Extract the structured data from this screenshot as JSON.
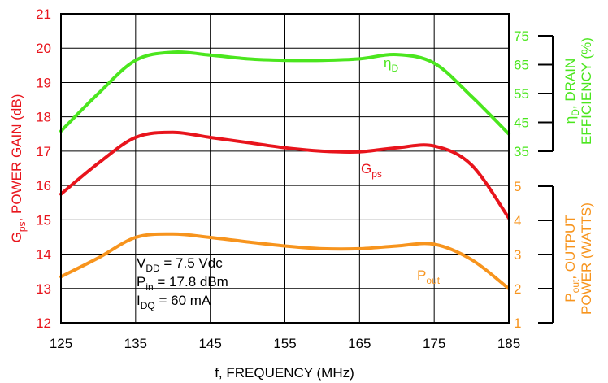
{
  "colors": {
    "gps": "#e8141c",
    "eta": "#4be61e",
    "pout": "#f7941d",
    "axis": "#000000"
  },
  "chart_data": {
    "type": "line",
    "x": [
      125,
      130,
      135,
      140,
      145,
      150,
      155,
      160,
      165,
      170,
      175,
      180,
      185
    ],
    "xlabel": "f, FREQUENCY (MHz)",
    "xlim": [
      125,
      185
    ],
    "xticks": [
      "125",
      "135",
      "145",
      "155",
      "165",
      "175",
      "185"
    ],
    "grid": true,
    "axes": {
      "left": {
        "label_prefix": "G",
        "label_sub": "ps",
        "label_rest": ", POWER GAIN (dB)",
        "ylim": [
          12,
          21
        ],
        "ticks": [
          "12",
          "13",
          "14",
          "15",
          "16",
          "17",
          "18",
          "19",
          "20",
          "21"
        ]
      },
      "right_top": {
        "label_line1_prefix": "η",
        "label_line1_sub": "D",
        "label_line1_rest": ", DRAIN",
        "label_line2": "EFFICIENCY (%)",
        "ylim": [
          35,
          75
        ],
        "ticks": [
          "35",
          "45",
          "55",
          "65",
          "75"
        ]
      },
      "right_bottom": {
        "label_line1_prefix": "P",
        "label_line1_sub": "out",
        "label_line1_rest": ", OUTPUT",
        "label_line2": "POWER (WATTS)",
        "ylim": [
          1,
          5
        ],
        "ticks": [
          "1",
          "2",
          "3",
          "4",
          "5"
        ]
      }
    },
    "series": [
      {
        "name_main": "η",
        "name_sub": "D",
        "axis": "right_top",
        "values": [
          42,
          55,
          66.5,
          69.3,
          68.3,
          67,
          66.5,
          66.5,
          67,
          68.5,
          65.5,
          54,
          41
        ]
      },
      {
        "name_main": "G",
        "name_sub": "ps",
        "axis": "left",
        "values": [
          15.75,
          16.65,
          17.4,
          17.55,
          17.4,
          17.25,
          17.1,
          17.0,
          16.98,
          17.1,
          17.15,
          16.6,
          15.05
        ]
      },
      {
        "name_main": "P",
        "name_sub": "out",
        "axis": "right_bottom",
        "values": [
          2.35,
          2.9,
          3.5,
          3.6,
          3.5,
          3.37,
          3.25,
          3.17,
          3.17,
          3.25,
          3.3,
          2.85,
          2.0
        ]
      }
    ],
    "conditions": [
      {
        "main": "V",
        "sub": "DD",
        "rest": " = 7.5 Vdc"
      },
      {
        "main": "P",
        "sub": "in",
        "rest": " = 17.8 dBm"
      },
      {
        "main": "I",
        "sub": "DQ",
        "rest": " = 60 mA"
      }
    ]
  }
}
